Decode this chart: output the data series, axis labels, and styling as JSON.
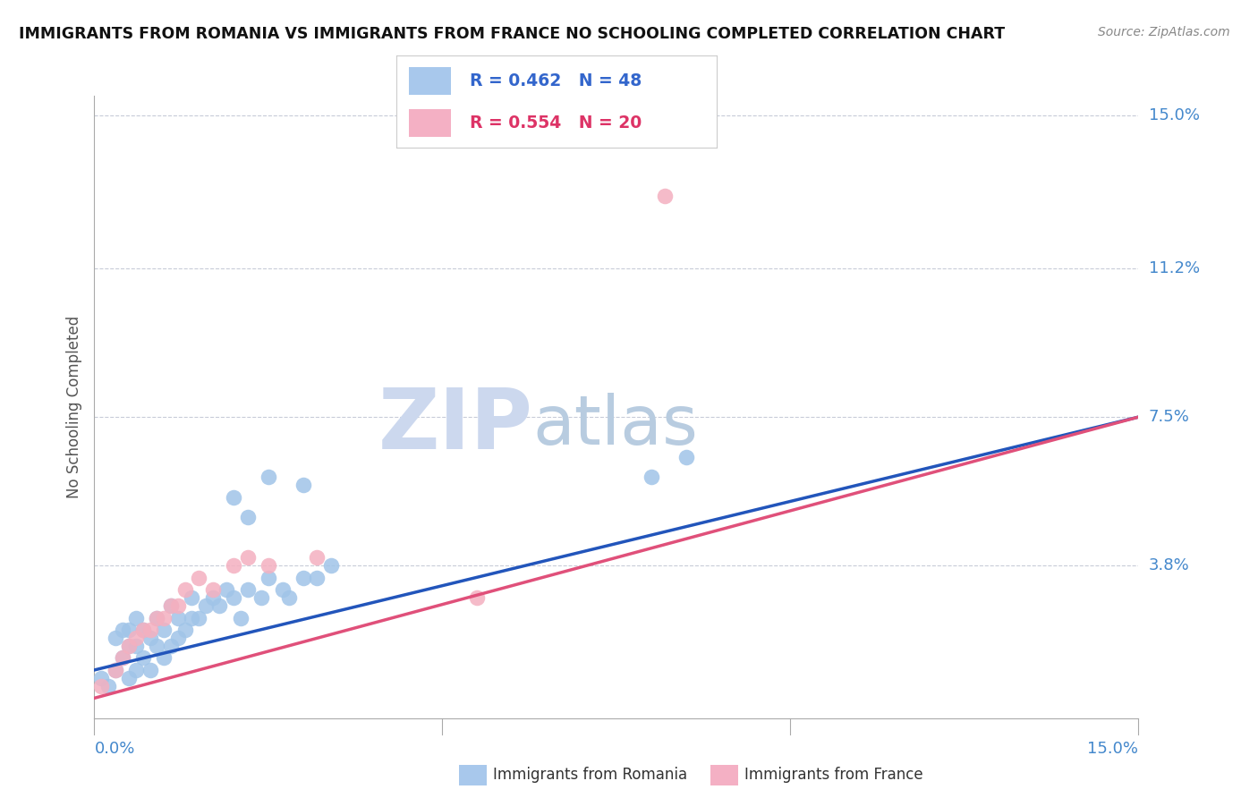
{
  "title": "IMMIGRANTS FROM ROMANIA VS IMMIGRANTS FROM FRANCE NO SCHOOLING COMPLETED CORRELATION CHART",
  "source": "Source: ZipAtlas.com",
  "ylabel": "No Schooling Completed",
  "ytick_vals": [
    0.0,
    0.038,
    0.075,
    0.112,
    0.15
  ],
  "ytick_labels": [
    "",
    "3.8%",
    "7.5%",
    "11.2%",
    "15.0%"
  ],
  "xmin": 0.0,
  "xmax": 0.15,
  "ymin": 0.0,
  "ymax": 0.155,
  "romania_R": 0.462,
  "romania_N": 48,
  "france_R": 0.554,
  "france_N": 20,
  "romania_color": "#a0c4e8",
  "france_color": "#f4b0c0",
  "romania_line_color": "#2255bb",
  "france_line_color": "#e0507a",
  "legend_color_romania": "#a8c8ec",
  "legend_color_france": "#f4b0c4",
  "watermark_zip": "ZIP",
  "watermark_atlas": "atlas",
  "watermark_color_zip": "#c8d8ee",
  "watermark_color_atlas": "#b8cce8",
  "romania_x": [
    0.001,
    0.002,
    0.003,
    0.003,
    0.004,
    0.004,
    0.005,
    0.005,
    0.005,
    0.006,
    0.006,
    0.006,
    0.007,
    0.007,
    0.008,
    0.008,
    0.009,
    0.009,
    0.01,
    0.01,
    0.011,
    0.011,
    0.012,
    0.012,
    0.013,
    0.014,
    0.014,
    0.015,
    0.016,
    0.017,
    0.018,
    0.019,
    0.02,
    0.021,
    0.022,
    0.024,
    0.025,
    0.027,
    0.028,
    0.03,
    0.032,
    0.034,
    0.02,
    0.022,
    0.025,
    0.03,
    0.08,
    0.085
  ],
  "romania_y": [
    0.01,
    0.008,
    0.012,
    0.02,
    0.015,
    0.022,
    0.01,
    0.018,
    0.022,
    0.012,
    0.018,
    0.025,
    0.015,
    0.022,
    0.012,
    0.02,
    0.018,
    0.025,
    0.015,
    0.022,
    0.018,
    0.028,
    0.02,
    0.025,
    0.022,
    0.025,
    0.03,
    0.025,
    0.028,
    0.03,
    0.028,
    0.032,
    0.03,
    0.025,
    0.032,
    0.03,
    0.035,
    0.032,
    0.03,
    0.035,
    0.035,
    0.038,
    0.055,
    0.05,
    0.06,
    0.058,
    0.06,
    0.065
  ],
  "france_x": [
    0.001,
    0.003,
    0.004,
    0.005,
    0.006,
    0.007,
    0.008,
    0.009,
    0.01,
    0.011,
    0.012,
    0.013,
    0.015,
    0.017,
    0.02,
    0.022,
    0.025,
    0.032,
    0.055,
    0.082
  ],
  "france_y": [
    0.008,
    0.012,
    0.015,
    0.018,
    0.02,
    0.022,
    0.022,
    0.025,
    0.025,
    0.028,
    0.028,
    0.032,
    0.035,
    0.032,
    0.038,
    0.04,
    0.038,
    0.04,
    0.03,
    0.13
  ],
  "rom_line_x0": 0.0,
  "rom_line_y0": 0.012,
  "rom_line_x1": 0.15,
  "rom_line_y1": 0.075,
  "fra_line_x0": 0.0,
  "fra_line_y0": 0.005,
  "fra_line_x1": 0.15,
  "fra_line_y1": 0.075
}
